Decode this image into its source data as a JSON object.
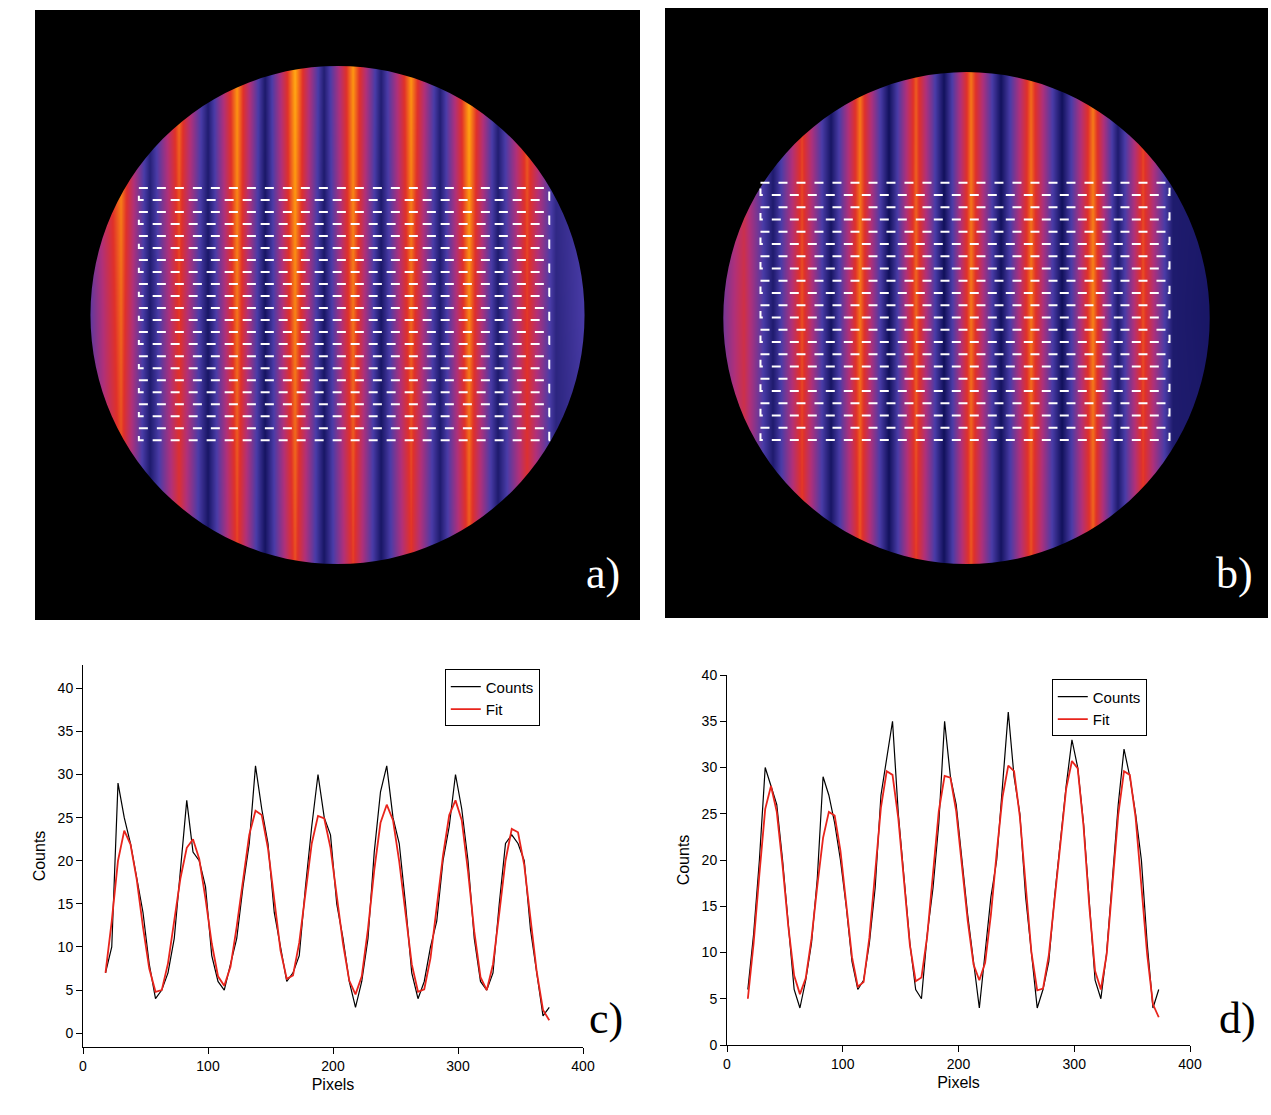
{
  "chart_data": [
    {
      "type": "heatmap",
      "annotation": "a)",
      "tick_labels": false,
      "xlim": [
        0,
        600
      ],
      "ylim": [
        600,
        0
      ],
      "zlim": [
        0,
        1
      ],
      "x": [
        26,
        55,
        85,
        114,
        142,
        171,
        200,
        228,
        257,
        286,
        315,
        343,
        372,
        401,
        430,
        459,
        488,
        516,
        545,
        574
      ],
      "y": [
        40,
        300,
        560
      ],
      "z": [
        [
          0.35,
          0.45,
          0.85,
          0.25,
          0.8,
          0.22,
          0.85,
          0.2,
          0.88,
          0.22,
          0.85,
          0.22,
          0.85,
          0.22,
          0.88,
          0.22,
          0.78,
          0.28,
          0.35,
          0.3
        ],
        [
          0.3,
          0.4,
          0.78,
          0.2,
          0.72,
          0.18,
          0.8,
          0.17,
          0.82,
          0.18,
          0.8,
          0.18,
          0.78,
          0.2,
          0.82,
          0.2,
          0.72,
          0.25,
          0.35,
          0.3
        ],
        [
          0.3,
          0.4,
          0.7,
          0.2,
          0.66,
          0.18,
          0.72,
          0.17,
          0.74,
          0.18,
          0.72,
          0.18,
          0.7,
          0.2,
          0.75,
          0.2,
          0.66,
          0.24,
          0.3,
          0.28
        ]
      ]
    },
    {
      "type": "heatmap",
      "annotation": "b)",
      "tick_labels": false,
      "xlim": [
        0,
        600
      ],
      "ylim": [
        600,
        0
      ],
      "zlim": [
        0,
        1
      ],
      "x": [
        20,
        49,
        78,
        107,
        136,
        165,
        194,
        222,
        249,
        277,
        304,
        334,
        364,
        395,
        425,
        450,
        475,
        505,
        540,
        580
      ],
      "y": [
        40,
        300,
        560
      ],
      "z": [
        [
          0.3,
          0.35,
          0.6,
          0.2,
          0.72,
          0.18,
          0.8,
          0.16,
          0.76,
          0.16,
          0.8,
          0.16,
          0.78,
          0.16,
          0.8,
          0.2,
          0.72,
          0.2,
          0.2,
          0.25
        ],
        [
          0.3,
          0.35,
          0.65,
          0.2,
          0.75,
          0.17,
          0.8,
          0.15,
          0.78,
          0.15,
          0.8,
          0.16,
          0.8,
          0.15,
          0.82,
          0.2,
          0.75,
          0.2,
          0.18,
          0.25
        ],
        [
          0.3,
          0.35,
          0.62,
          0.2,
          0.7,
          0.18,
          0.74,
          0.16,
          0.72,
          0.16,
          0.75,
          0.17,
          0.74,
          0.16,
          0.76,
          0.2,
          0.7,
          0.2,
          0.2,
          0.25
        ]
      ]
    },
    {
      "type": "line",
      "annotation": "c)",
      "xlabel": "Pixels",
      "ylabel": "Counts",
      "xlim": [
        0,
        400
      ],
      "ylim": [
        -1.6,
        42.7
      ],
      "xticks": [
        0,
        100,
        200,
        300,
        400
      ],
      "yticks": [
        0,
        5,
        10,
        15,
        20,
        25,
        30,
        35,
        40
      ],
      "grid": false,
      "legend": "top right",
      "x": [
        18,
        23,
        28,
        33,
        38,
        43,
        48,
        53,
        58,
        63,
        68,
        73,
        78,
        83,
        88,
        93,
        98,
        103,
        108,
        113,
        118,
        123,
        128,
        133,
        138,
        143,
        148,
        153,
        158,
        163,
        168,
        173,
        178,
        183,
        188,
        193,
        198,
        203,
        208,
        213,
        218,
        223,
        228,
        233,
        238,
        243,
        248,
        253,
        258,
        263,
        268,
        273,
        278,
        283,
        288,
        293,
        298,
        303,
        308,
        313,
        318,
        323,
        328,
        333,
        338,
        343,
        348,
        353,
        358,
        363,
        368,
        373
      ],
      "series": [
        {
          "name": "Counts",
          "color": "#000000",
          "values": [
            7,
            10,
            29,
            25,
            22,
            18,
            14,
            8,
            4,
            5,
            7,
            11,
            19,
            27,
            21,
            20,
            17,
            9,
            6,
            5,
            8,
            11,
            17,
            22,
            31,
            26,
            22,
            14,
            10,
            6,
            7,
            9,
            17,
            24,
            30,
            25,
            23,
            15,
            11,
            6,
            3,
            6,
            11,
            21,
            28,
            31,
            25,
            22,
            15,
            7,
            4,
            6,
            10,
            13,
            20,
            24,
            30,
            26,
            20,
            11,
            6,
            5,
            7,
            15,
            22,
            23,
            22,
            20,
            12,
            7,
            2,
            3
          ]
        },
        {
          "name": "Fit",
          "color": "#e8241c",
          "values": [
            7,
            13,
            20,
            23.5,
            21.9,
            17.8,
            12.3,
            7.5,
            4.8,
            5.0,
            8.1,
            13.0,
            18.0,
            21.5,
            22.5,
            20.2,
            15.6,
            10.4,
            6.6,
            5.5,
            7.7,
            12.4,
            18.0,
            23.0,
            25.8,
            25.3,
            21.4,
            15.4,
            9.6,
            6.3,
            6.7,
            10.5,
            16.4,
            22.0,
            25.2,
            24.9,
            21.5,
            16.2,
            10.4,
            6.1,
            4.5,
            6.6,
            12.1,
            18.9,
            24.4,
            26.5,
            24.7,
            19.9,
            13.6,
            8.0,
            4.8,
            5.1,
            8.7,
            14.5,
            20.6,
            25.3,
            27.0,
            24.7,
            18.8,
            11.8,
            6.5,
            5.0,
            8.0,
            13.9,
            20.0,
            23.7,
            23.3,
            19.5,
            13.4,
            7.1,
            2.7,
            1.5
          ]
        }
      ]
    },
    {
      "type": "line",
      "annotation": "d)",
      "xlabel": "Pixels",
      "ylabel": "Counts",
      "xlim": [
        0,
        400
      ],
      "ylim": [
        0,
        40
      ],
      "xticks": [
        0,
        100,
        200,
        300,
        400
      ],
      "yticks": [
        0,
        5,
        10,
        15,
        20,
        25,
        30,
        35,
        40
      ],
      "grid": false,
      "legend": "top right",
      "x": [
        18,
        23,
        28,
        33,
        38,
        43,
        48,
        53,
        58,
        63,
        68,
        73,
        78,
        83,
        88,
        93,
        98,
        103,
        108,
        113,
        118,
        123,
        128,
        133,
        138,
        143,
        148,
        153,
        158,
        163,
        168,
        173,
        178,
        183,
        188,
        193,
        198,
        203,
        208,
        213,
        218,
        223,
        228,
        233,
        238,
        243,
        248,
        253,
        258,
        263,
        268,
        273,
        278,
        283,
        288,
        293,
        298,
        303,
        308,
        313,
        318,
        323,
        328,
        333,
        338,
        343,
        348,
        353,
        358,
        363,
        368,
        373
      ],
      "series": [
        {
          "name": "Counts",
          "color": "#000000",
          "values": [
            6,
            12,
            20,
            30,
            28,
            26,
            20,
            13,
            6,
            4,
            7,
            11,
            18,
            29,
            27,
            24,
            20,
            15,
            9,
            6,
            7,
            11,
            17,
            27,
            31,
            35,
            25,
            18,
            11,
            6,
            5,
            12,
            17,
            24,
            35,
            29,
            26,
            20,
            14,
            9,
            4,
            10,
            16,
            20,
            28,
            36,
            29,
            25,
            16,
            10,
            4,
            6,
            9,
            16,
            22,
            28,
            33,
            30,
            24,
            15,
            7,
            5,
            10,
            18,
            26,
            32,
            29,
            25,
            20,
            11,
            4,
            6
          ]
        },
        {
          "name": "Fit",
          "color": "#e8241c",
          "values": [
            5,
            11,
            18.5,
            25.5,
            28,
            25.2,
            19.4,
            12.8,
            7.5,
            5.5,
            7.2,
            11.5,
            17.2,
            22.4,
            25.2,
            24.8,
            21.0,
            15.1,
            9.5,
            6.3,
            6.8,
            11.6,
            18.8,
            25.7,
            29.6,
            29.2,
            24.5,
            17.5,
            10.8,
            6.9,
            7.3,
            11.8,
            18.7,
            25.3,
            29.1,
            28.9,
            25.3,
            19.5,
            13.4,
            8.7,
            7,
            8.9,
            14.1,
            20.8,
            26.8,
            30.2,
            29.6,
            24.7,
            17.2,
            10.0,
            5.9,
            6.1,
            9.7,
            15.6,
            22.2,
            27.7,
            30.7,
            29.9,
            23.7,
            15.0,
            8.0,
            6.0,
            9.8,
            17.2,
            24.9,
            29.6,
            29.2,
            24.6,
            17.3,
            9.8,
            4.4,
            3
          ]
        }
      ]
    }
  ]
}
